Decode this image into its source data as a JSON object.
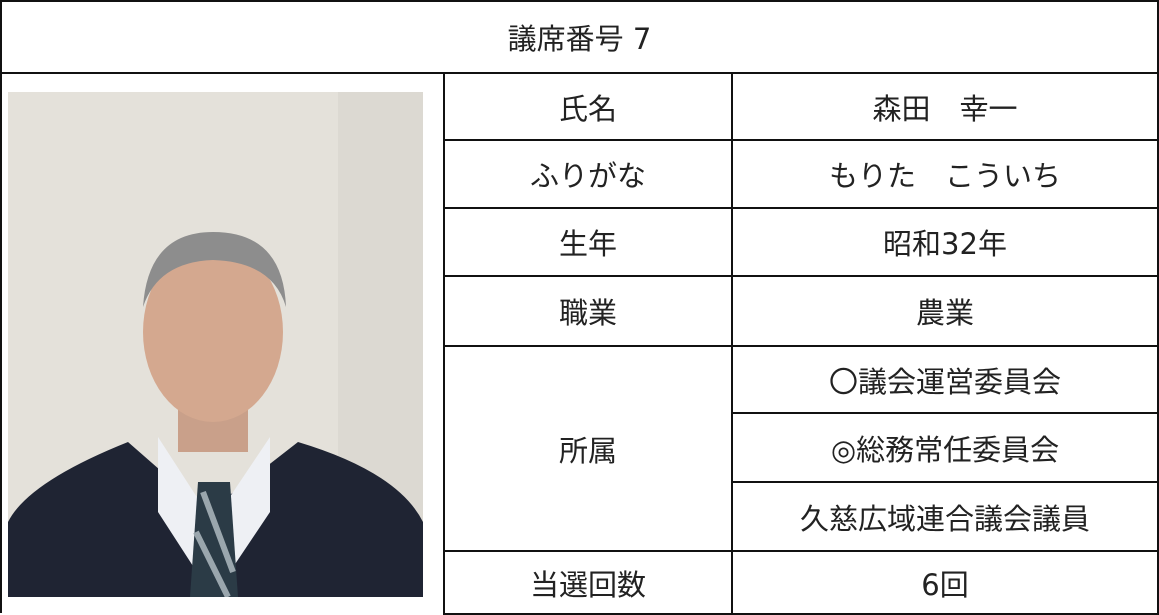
{
  "header": {
    "title": "議席番号 7"
  },
  "table": {
    "rows": [
      {
        "label": "氏名",
        "values": [
          "森田　幸一"
        ]
      },
      {
        "label": "ふりがな",
        "values": [
          "もりた　こういち"
        ]
      },
      {
        "label": "生年",
        "values": [
          "昭和32年"
        ]
      },
      {
        "label": "職業",
        "values": [
          "農業"
        ]
      },
      {
        "label": "所属",
        "values": [
          "〇議会運営委員会",
          "◎総務常任委員会",
          "久慈広域連合議会議員"
        ]
      },
      {
        "label": "当選回数",
        "values": [
          "6回"
        ]
      }
    ]
  }
}
